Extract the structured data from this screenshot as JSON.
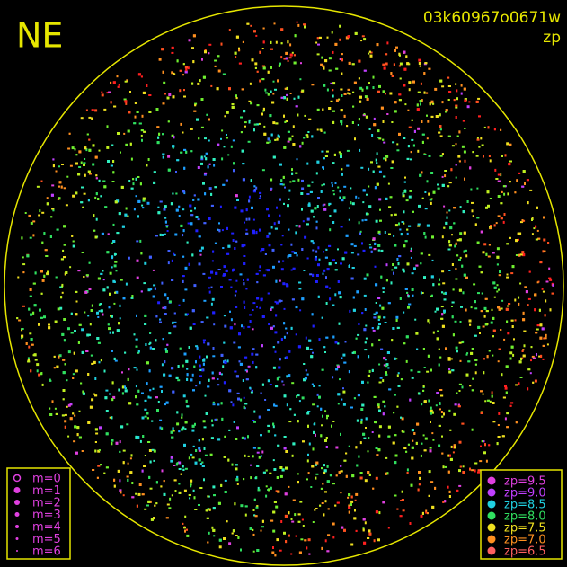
{
  "header": {
    "direction": "NE",
    "image_id": "03k60967o0671w",
    "mode": "zp"
  },
  "legend_m": {
    "items": [
      "m=0",
      "m=1",
      "m=2",
      "m=3",
      "m=4",
      "m=5",
      "m=6"
    ]
  },
  "legend_zp": {
    "items": [
      "zp=9.5",
      "zp=9.0",
      "zp=8.5",
      "zp=8.0",
      "zp=7.5",
      "zp=7.0",
      "zp=6.5"
    ]
  }
}
